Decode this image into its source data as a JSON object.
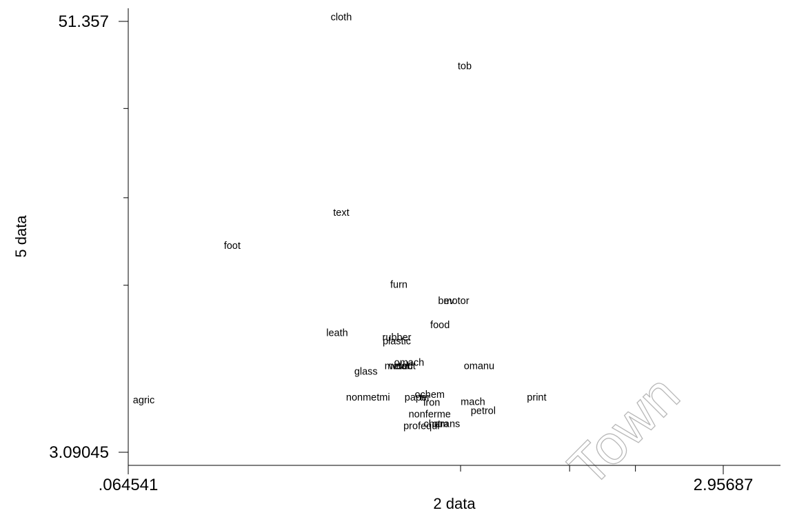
{
  "watermark": "Town",
  "chart_data": {
    "type": "scatter",
    "marker": "label",
    "xlabel": "2 data",
    "ylabel": "5 data",
    "xlim": [
      0.064541,
      2.95687
    ],
    "ylim": [
      3.09045,
      51.357
    ],
    "x_tick_labels": [
      {
        "value": 0.064541,
        "label": ".064541"
      },
      {
        "value": 2.95687,
        "label": "2.95687"
      }
    ],
    "y_tick_labels": [
      {
        "value": 51.357,
        "label": "51.357"
      },
      {
        "value": 3.09045,
        "label": "3.09045"
      }
    ],
    "x_minor_ticks": [
      1.68,
      2.21,
      2.53
    ],
    "y_minor_ticks": [
      41.6,
      31.6,
      21.8
    ],
    "points": [
      {
        "label": "cloth",
        "x": 1.1,
        "y": 51.8
      },
      {
        "label": "tob",
        "x": 1.7,
        "y": 46.3
      },
      {
        "label": "text",
        "x": 1.1,
        "y": 29.9
      },
      {
        "label": "foot",
        "x": 0.57,
        "y": 26.2
      },
      {
        "label": "furn",
        "x": 1.38,
        "y": 21.8
      },
      {
        "label": "bev",
        "x": 1.61,
        "y": 20.0
      },
      {
        "label": "motor",
        "x": 1.66,
        "y": 20.0
      },
      {
        "label": "food",
        "x": 1.58,
        "y": 17.3
      },
      {
        "label": "leath",
        "x": 1.08,
        "y": 16.4
      },
      {
        "label": "rubber",
        "x": 1.37,
        "y": 15.9
      },
      {
        "label": "plastic",
        "x": 1.37,
        "y": 15.5
      },
      {
        "label": "omach",
        "x": 1.43,
        "y": 13.1
      },
      {
        "label": "metal",
        "x": 1.37,
        "y": 12.7
      },
      {
        "label": "wood",
        "x": 1.39,
        "y": 12.7
      },
      {
        "label": "elect",
        "x": 1.41,
        "y": 12.7
      },
      {
        "label": "omanu",
        "x": 1.77,
        "y": 12.7
      },
      {
        "label": "glass",
        "x": 1.22,
        "y": 12.1
      },
      {
        "label": "ochem",
        "x": 1.53,
        "y": 9.5
      },
      {
        "label": "nonmetmi",
        "x": 1.23,
        "y": 9.2
      },
      {
        "label": "paper",
        "x": 1.47,
        "y": 9.2
      },
      {
        "label": "tv",
        "x": 1.5,
        "y": 9.2
      },
      {
        "label": "print",
        "x": 2.05,
        "y": 9.2
      },
      {
        "label": "agric",
        "x": 0.14,
        "y": 8.9
      },
      {
        "label": "mach",
        "x": 1.74,
        "y": 8.7
      },
      {
        "label": "iron",
        "x": 1.54,
        "y": 8.6
      },
      {
        "label": "petrol",
        "x": 1.79,
        "y": 7.7
      },
      {
        "label": "nonferme",
        "x": 1.53,
        "y": 7.3
      },
      {
        "label": "profequi",
        "x": 1.49,
        "y": 6.0
      },
      {
        "label": "chem",
        "x": 1.56,
        "y": 6.2
      },
      {
        "label": "otrans",
        "x": 1.61,
        "y": 6.2
      }
    ]
  }
}
